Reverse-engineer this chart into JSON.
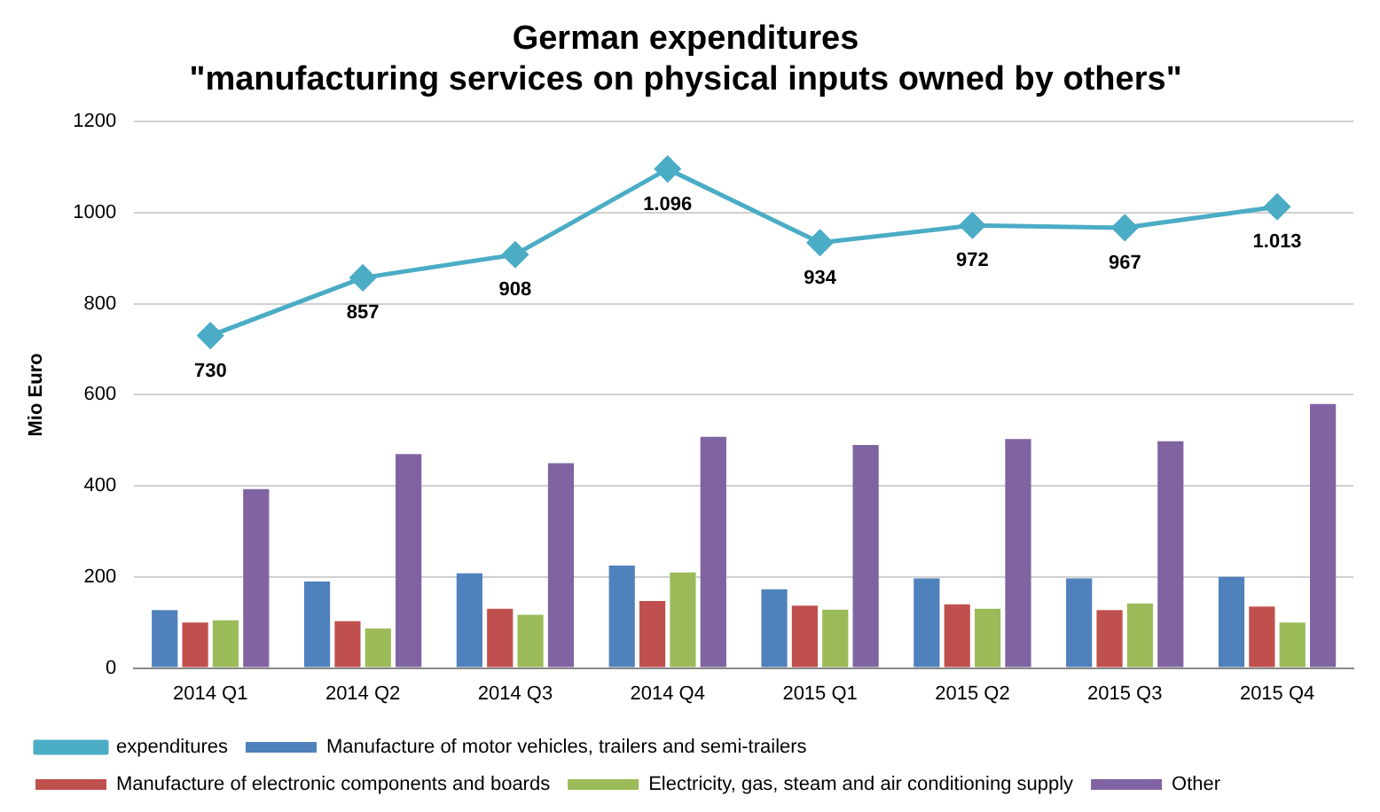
{
  "chart_data": {
    "type": "bar",
    "title": [
      "German expenditures",
      "\"manufacturing services on physical inputs owned by others\""
    ],
    "ylabel": "Mio Euro",
    "categories": [
      "2014 Q1",
      "2014 Q2",
      "2014 Q3",
      "2014 Q4",
      "2015 Q1",
      "2015 Q2",
      "2015 Q3",
      "2015 Q4"
    ],
    "series": [
      {
        "name": "Manufacture of motor vehicles, trailers and semi-trailers",
        "color": "#4f81bd",
        "values": [
          127,
          190,
          208,
          225,
          173,
          197,
          197,
          200
        ]
      },
      {
        "name": "Manufacture of electronic components and boards",
        "color": "#c0504d",
        "values": [
          100,
          103,
          130,
          147,
          137,
          140,
          127,
          135
        ]
      },
      {
        "name": "Electricity, gas, steam and air conditioning supply",
        "color": "#9bbb59",
        "values": [
          105,
          87,
          117,
          210,
          128,
          130,
          142,
          100
        ]
      },
      {
        "name": "Other",
        "color": "#8064a2",
        "values": [
          393,
          470,
          450,
          508,
          490,
          503,
          498,
          580
        ]
      },
      {
        "name": "expenditures",
        "type": "line",
        "color": "#4bacc6",
        "marker": "diamond",
        "values": [
          730,
          857,
          908,
          1096,
          934,
          972,
          967,
          1013
        ],
        "value_labels": [
          "730",
          "857",
          "908",
          "1.096",
          "934",
          "972",
          "967",
          "1.013"
        ]
      }
    ],
    "ylim": [
      0,
      1200
    ],
    "yticks": [
      0,
      200,
      400,
      600,
      800,
      1000,
      1200
    ],
    "grid": "y",
    "legend": "bottom"
  }
}
